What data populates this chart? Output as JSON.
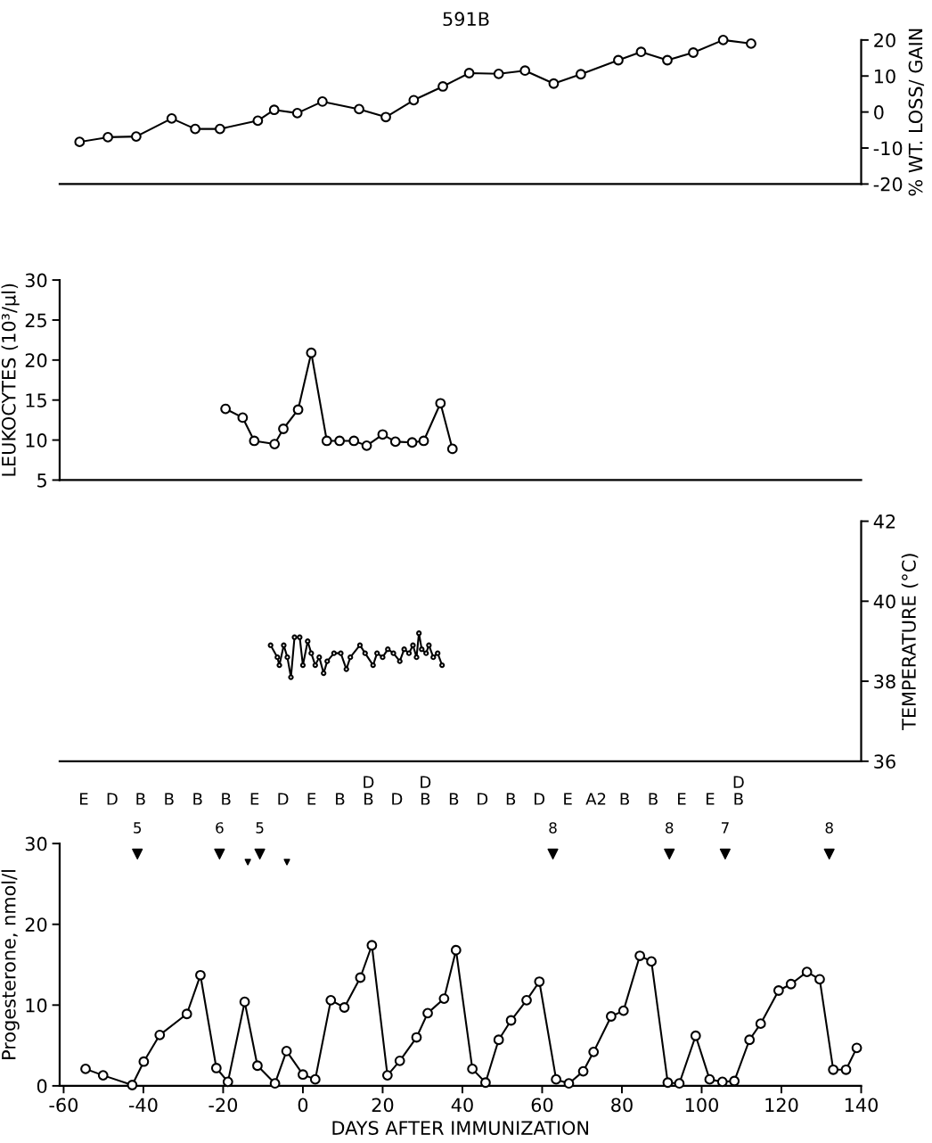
{
  "chart_data": [
    {
      "type": "line",
      "title": "591B",
      "y2label": "% WT. LOSS/ GAIN",
      "xlim": [
        -61,
        140
      ],
      "y2lim": [
        -20,
        20
      ],
      "y2ticks": [
        -20,
        -10,
        0,
        10,
        20
      ],
      "tick_labels": "y",
      "grid": false,
      "legend": false,
      "marker": "circle",
      "series": [
        {
          "color": "#000000",
          "axis": "y2",
          "x": [
            -56.0,
            -48.9,
            -41.8,
            -32.9,
            -27.0,
            -20.8,
            -11.3,
            -7.2,
            -1.4,
            4.9,
            14.1,
            20.8,
            27.8,
            35.1,
            41.7,
            49.1,
            55.7,
            62.9,
            69.7,
            79.1,
            84.8,
            91.4,
            97.9,
            105.4,
            112.4
          ],
          "values": [
            -8.3,
            -7.0,
            -6.8,
            -1.8,
            -4.7,
            -4.7,
            -2.4,
            0.6,
            -0.3,
            2.9,
            0.8,
            -1.4,
            3.3,
            7.1,
            10.8,
            10.6,
            11.5,
            7.9,
            10.5,
            14.4,
            16.7,
            14.4,
            16.5,
            20,
            19.0
          ]
        }
      ]
    },
    {
      "type": "line",
      "ylabel": "LEUKOCYTES (10³/µl)",
      "xlim": [
        -61,
        140
      ],
      "ylim": [
        5,
        30
      ],
      "yticks": [
        5,
        10,
        15,
        20,
        25,
        30
      ],
      "tick_labels": "y",
      "grid": false,
      "legend": false,
      "marker": "circle",
      "series": [
        {
          "color": "#000000",
          "x": [
            -19.4,
            -15.1,
            -12.2,
            -7.1,
            -4.9,
            -1.2,
            2.1,
            6.0,
            9.2,
            12.8,
            16.0,
            20.0,
            23.2,
            27.4,
            30.3,
            34.5,
            37.5
          ],
          "values": [
            13.9,
            12.8,
            9.9,
            9.5,
            11.4,
            13.8,
            20.9,
            9.9,
            9.9,
            9.9,
            9.3,
            10.7,
            9.8,
            9.7,
            9.9,
            14.6,
            8.9
          ]
        }
      ]
    },
    {
      "type": "line",
      "y2label": "TEMPERATURE (°C)",
      "xlim": [
        -61,
        140
      ],
      "y2lim": [
        36,
        42
      ],
      "y2ticks": [
        36,
        38,
        40,
        42
      ],
      "tick_labels": "y",
      "grid": false,
      "legend": false,
      "marker": "circle",
      "series": [
        {
          "color": "#000000",
          "axis": "y2",
          "x": [
            -8.1,
            -6.4,
            -5.9,
            -4.8,
            -3.9,
            -3.0,
            -2.1,
            -0.8,
            0.0,
            1.2,
            2.1,
            3.1,
            4.1,
            5.2,
            6.1,
            7.8,
            9.5,
            10.9,
            11.9,
            14.3,
            15.6,
            17.6,
            18.6,
            20.0,
            21.3,
            22.7,
            24.3,
            25.4,
            26.6,
            27.6,
            28.5,
            29.1,
            29.8,
            30.9,
            31.6,
            32.7,
            33.8,
            34.9
          ],
          "values": [
            38.9,
            38.6,
            38.4,
            38.9,
            38.6,
            38.1,
            39.1,
            39.1,
            38.4,
            39.0,
            38.7,
            38.4,
            38.6,
            38.2,
            38.5,
            38.7,
            38.7,
            38.3,
            38.6,
            38.9,
            38.7,
            38.4,
            38.7,
            38.6,
            38.8,
            38.7,
            38.5,
            38.8,
            38.7,
            38.9,
            38.6,
            39.2,
            38.8,
            38.7,
            38.9,
            38.6,
            38.7,
            38.4
          ]
        }
      ]
    },
    {
      "type": "line",
      "xlabel": "DAYS AFTER IMMUNIZATION",
      "ylabel": "Progesterone, nmol/l",
      "xlim": [
        -61,
        140
      ],
      "xticks": [
        -60,
        -40,
        -20,
        0,
        20,
        40,
        60,
        80,
        100,
        120,
        140
      ],
      "ylim": [
        0,
        30
      ],
      "yticks": [
        0,
        10,
        20,
        30
      ],
      "grid": false,
      "legend": false,
      "marker": "circle",
      "annotations": [
        "E",
        "D",
        "B",
        "B",
        "B",
        "B",
        "E",
        "D",
        "E",
        "B",
        "D\nB",
        "D",
        "D\nB",
        "B",
        "D",
        "B",
        "D",
        "E",
        "A2",
        "B",
        "B",
        "E",
        "E",
        "D\nB",
        "5",
        "6",
        "5",
        "8",
        "8",
        "7",
        "8"
      ],
      "series": [
        {
          "color": "#000000",
          "x": [
            -54.5,
            -50.1,
            -42.8,
            -39.9,
            -35.9,
            -29.1,
            -25.7,
            -21.7,
            -18.8,
            -14.6,
            -11.4,
            -7.0,
            -4.1,
            0,
            3.1,
            7.0,
            10.4,
            14.4,
            17.3,
            21.2,
            24.3,
            28.5,
            31.3,
            35.4,
            38.4,
            42.5,
            45.8,
            49.1,
            52.2,
            56.1,
            59.3,
            63.5,
            66.7,
            70.3,
            72.9,
            77.3,
            80.4,
            84.5,
            87.4,
            91.5,
            94.4,
            98.5,
            102.0,
            105.2,
            108.2,
            112.0,
            114.8,
            119.3,
            122.4,
            126.4,
            129.6,
            133.0,
            136.2,
            138.9
          ],
          "values": [
            2.1,
            1.3,
            0.1,
            3.0,
            6.3,
            8.9,
            13.7,
            2.2,
            0.5,
            10.4,
            2.5,
            0.3,
            4.3,
            1.4,
            0.8,
            10.6,
            9.7,
            13.4,
            17.4,
            1.3,
            3.1,
            6.0,
            9.0,
            10.8,
            16.8,
            2.1,
            0.4,
            5.7,
            8.1,
            10.6,
            12.9,
            0.8,
            0.3,
            1.8,
            4.2,
            8.6,
            9.3,
            16.1,
            15.4,
            0.4,
            0.3,
            6.2,
            0.8,
            0.5,
            0.6,
            5.7,
            7.7,
            11.8,
            12.6,
            14.1,
            13.2,
            2.0,
            2.0,
            4.7
          ]
        },
        {
          "type": "scatter",
          "color": "#000000",
          "marker": "triangle",
          "x": [
            -13.8,
            -4.0
          ],
          "values": [
            27.7,
            27.7
          ]
        },
        {
          "type": "scatter",
          "color": "#000000",
          "marker": "triangle",
          "x": [
            -41.5,
            -20.9,
            -10.8,
            62.7,
            91.9,
            105.9,
            132.0
          ],
          "values": [
            28.7,
            28.7,
            28.7,
            28.7,
            28.7,
            28.7,
            28.7
          ]
        }
      ]
    }
  ]
}
